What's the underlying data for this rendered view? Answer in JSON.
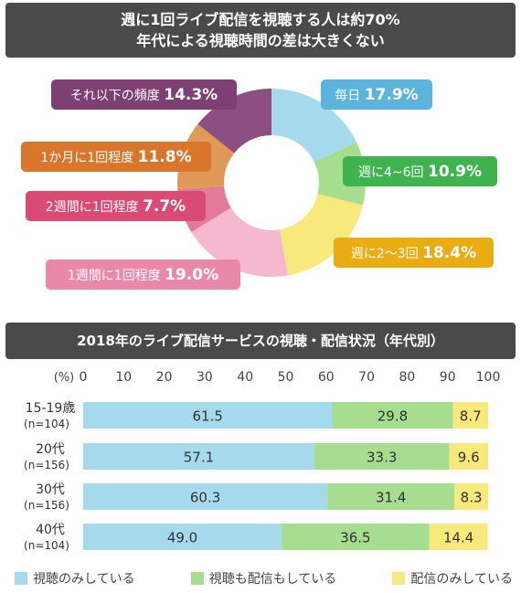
{
  "donut_title": {
    "line1": "週に1回ライブ配信を視聴する人は約70%",
    "line2": "年代による視聴時間の差は大きくない"
  },
  "bar_title": "2018年のライブ配信サービスの視聴・配信状況（年代別）",
  "chart_data": [
    {
      "type": "pie",
      "style": "donut",
      "title": "週に1回ライブ配信を視聴する人は約70% 年代による視聴時間の差は大きくない",
      "slices": [
        {
          "label": "毎日",
          "value": 17.9,
          "display": "17.9%",
          "color": "#a5d9ec"
        },
        {
          "label": "週に4~6回",
          "value": 10.9,
          "display": "10.9%",
          "color": "#a6dd8f"
        },
        {
          "label": "週に2～3回",
          "value": 18.4,
          "display": "18.4%",
          "color": "#f7e97b"
        },
        {
          "label": "1週間に1回程度",
          "value": 19.0,
          "display": "19.0%",
          "color": "#f6b8cf"
        },
        {
          "label": "2週間に1回程度",
          "value": 7.7,
          "display": "7.7%",
          "color": "#e27a9a"
        },
        {
          "label": "1か月に1回程度",
          "value": 11.8,
          "display": "11.8%",
          "color": "#df9a57"
        },
        {
          "label": "それ以下の頻度",
          "value": 14.3,
          "display": "14.3%",
          "color": "#8d4f80"
        }
      ],
      "label_colors": [
        "#5ab4dd",
        "#3fb44e",
        "#e9ac11",
        "#ea88aa",
        "#d94a75",
        "#d9762b",
        "#7e3f72"
      ]
    },
    {
      "type": "bar",
      "orientation": "horizontal",
      "stacked": true,
      "title": "2018年のライブ配信サービスの視聴・配信状況（年代別）",
      "unit_label": "(%)",
      "xlim": [
        0,
        100
      ],
      "ticks": [
        "0",
        "10",
        "20",
        "30",
        "40",
        "50",
        "60",
        "70",
        "80",
        "90",
        "100"
      ],
      "categories": [
        {
          "name": "15-19歳",
          "n": "(n=104)"
        },
        {
          "name": "20代",
          "n": "(n=156)"
        },
        {
          "name": "30代",
          "n": "(n=156)"
        },
        {
          "name": "40代",
          "n": "(n=104)"
        }
      ],
      "series": [
        {
          "name": "視聴のみしている",
          "color": "#a5d9ec",
          "values": [
            61.5,
            57.1,
            60.3,
            49.0
          ],
          "labels": [
            "61.5",
            "57.1",
            "60.3",
            "49.0"
          ]
        },
        {
          "name": "視聴も配信もしている",
          "color": "#a6dd8f",
          "values": [
            29.8,
            33.3,
            31.4,
            36.5
          ],
          "labels": [
            "29.8",
            "33.3",
            "31.4",
            "36.5"
          ]
        },
        {
          "name": "配信のみしている",
          "color": "#f7e97b",
          "values": [
            8.7,
            9.6,
            8.3,
            14.4
          ],
          "labels": [
            "8.7",
            "9.6",
            "8.3",
            "14.4"
          ]
        }
      ]
    }
  ]
}
